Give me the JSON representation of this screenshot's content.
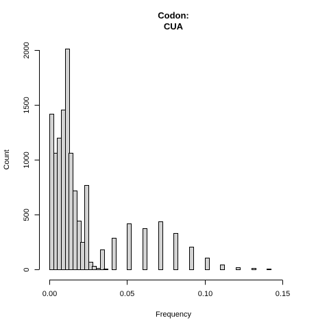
{
  "chart_data": {
    "type": "bar",
    "title": [
      "Codon:",
      "CUA"
    ],
    "xlabel": "Frequency",
    "ylabel": "Count",
    "bin_width": 0.0025,
    "xlim": [
      0,
      0.16
    ],
    "ylim": [
      0,
      2000
    ],
    "x_ticks": [
      "0.00",
      "0.05",
      "0.10",
      "0.15"
    ],
    "x_tick_values": [
      0,
      0.05,
      0.1,
      0.15
    ],
    "y_ticks": [
      "0",
      "500",
      "1000",
      "1500",
      "2000"
    ],
    "y_tick_values": [
      0,
      500,
      1000,
      1500,
      2000
    ],
    "bins": [
      {
        "x0": 0.0,
        "count": 1420
      },
      {
        "x0": 0.0025,
        "count": 1065
      },
      {
        "x0": 0.005,
        "count": 1200
      },
      {
        "x0": 0.0075,
        "count": 1455
      },
      {
        "x0": 0.01,
        "count": 2015
      },
      {
        "x0": 0.0125,
        "count": 1060
      },
      {
        "x0": 0.015,
        "count": 720
      },
      {
        "x0": 0.0175,
        "count": 445
      },
      {
        "x0": 0.02,
        "count": 250
      },
      {
        "x0": 0.0225,
        "count": 770
      },
      {
        "x0": 0.025,
        "count": 70
      },
      {
        "x0": 0.0275,
        "count": 30
      },
      {
        "x0": 0.03,
        "count": 10
      },
      {
        "x0": 0.0325,
        "count": 180
      },
      {
        "x0": 0.035,
        "count": 5
      },
      {
        "x0": 0.04,
        "count": 290
      },
      {
        "x0": 0.05,
        "count": 420
      },
      {
        "x0": 0.06,
        "count": 375
      },
      {
        "x0": 0.07,
        "count": 435
      },
      {
        "x0": 0.08,
        "count": 330
      },
      {
        "x0": 0.09,
        "count": 205
      },
      {
        "x0": 0.1,
        "count": 105
      },
      {
        "x0": 0.11,
        "count": 45
      },
      {
        "x0": 0.12,
        "count": 20
      },
      {
        "x0": 0.13,
        "count": 10
      },
      {
        "x0": 0.14,
        "count": 5
      },
      {
        "x0": 0.15,
        "count": 2
      }
    ],
    "bar_color": "#d3d3d3",
    "grid": false
  }
}
